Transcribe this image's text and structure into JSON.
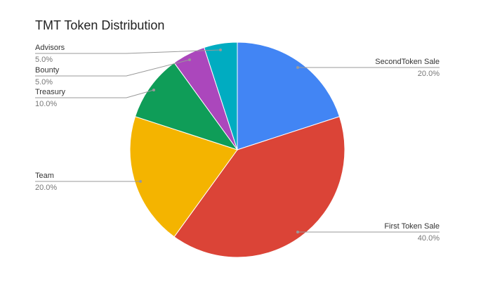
{
  "chart_data": {
    "type": "pie",
    "title": "TMT Token Distribution",
    "categories": [
      "SecondToken Sale",
      "First Token Sale",
      "Team",
      "Treasury",
      "Bounty",
      "Advisors"
    ],
    "values": [
      20,
      40,
      20,
      10,
      5,
      5
    ],
    "value_labels": [
      "20.0%",
      "40.0%",
      "20.0%",
      "10.0%",
      "5.0%",
      "5.0%"
    ],
    "colors": [
      "#4285f4",
      "#db4437",
      "#f4b400",
      "#0f9d58",
      "#ab47bc",
      "#00acc1"
    ]
  }
}
